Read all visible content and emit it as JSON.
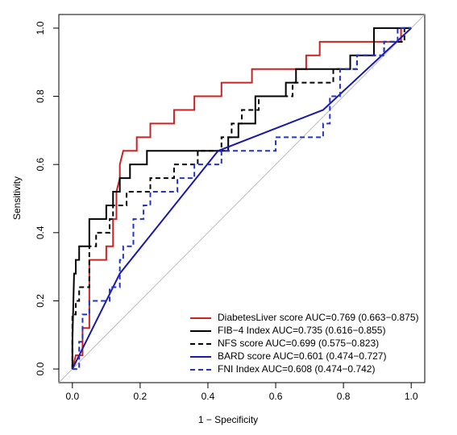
{
  "chart_data": {
    "type": "line",
    "xlabel": "1 − Specificity",
    "ylabel": "Sensitivity",
    "xlim": [
      -0.04,
      1.04
    ],
    "ylim": [
      -0.04,
      1.04
    ],
    "xticks": [
      {
        "value": 0,
        "label": "0.0"
      },
      0.2,
      0.4,
      0.6,
      0.8,
      {
        "value": 1,
        "label": "1.0"
      }
    ],
    "yticks": [
      {
        "value": 0,
        "label": "0.0"
      },
      0.2,
      0.4,
      0.6,
      0.8,
      {
        "value": 1,
        "label": "1.0"
      }
    ],
    "legend": "bottom-right",
    "series": [
      {
        "name": "DiabetesLiver score AUC=0.769 (0.663−0.875)",
        "color": "#cc2222",
        "dash": false,
        "x": [
          0,
          0.01,
          0.03,
          0.03,
          0.05,
          0.05,
          0.1,
          0.1,
          0.12,
          0.12,
          0.13,
          0.13,
          0.14,
          0.14,
          0.15,
          0.19,
          0.19,
          0.23,
          0.23,
          0.3,
          0.3,
          0.36,
          0.36,
          0.44,
          0.44,
          0.53,
          0.53,
          0.69,
          0.69,
          0.73,
          0.73,
          0.97,
          0.97,
          1
        ],
        "values": [
          0,
          0.04,
          0.04,
          0.12,
          0.12,
          0.32,
          0.32,
          0.36,
          0.36,
          0.44,
          0.44,
          0.52,
          0.56,
          0.6,
          0.64,
          0.64,
          0.68,
          0.68,
          0.72,
          0.72,
          0.76,
          0.76,
          0.8,
          0.8,
          0.84,
          0.84,
          0.88,
          0.88,
          0.92,
          0.92,
          0.96,
          0.96,
          1,
          1
        ]
      },
      {
        "name": "FIB−4 Index AUC=0.735 (0.616−0.855)",
        "color": "#000000",
        "dash": false,
        "x": [
          0,
          0,
          0.005,
          0.01,
          0.01,
          0.02,
          0.02,
          0.05,
          0.05,
          0.1,
          0.1,
          0.12,
          0.12,
          0.14,
          0.14,
          0.17,
          0.17,
          0.22,
          0.22,
          0.46,
          0.46,
          0.49,
          0.49,
          0.54,
          0.54,
          0.63,
          0.63,
          0.66,
          0.66,
          0.82,
          0.82,
          0.89,
          0.89,
          1
        ],
        "values": [
          0,
          0.08,
          0.28,
          0.28,
          0.32,
          0.32,
          0.36,
          0.36,
          0.44,
          0.44,
          0.48,
          0.48,
          0.52,
          0.52,
          0.56,
          0.56,
          0.6,
          0.6,
          0.64,
          0.64,
          0.68,
          0.68,
          0.72,
          0.72,
          0.8,
          0.8,
          0.84,
          0.84,
          0.88,
          0.88,
          0.92,
          0.92,
          1,
          1
        ]
      },
      {
        "name": "NFS score AUC=0.699 (0.575−0.823)",
        "color": "#000000",
        "dash": true,
        "x": [
          0,
          0,
          0.01,
          0.01,
          0.02,
          0.02,
          0.05,
          0.05,
          0.07,
          0.07,
          0.11,
          0.11,
          0.12,
          0.12,
          0.16,
          0.16,
          0.23,
          0.23,
          0.3,
          0.3,
          0.37,
          0.37,
          0.44,
          0.44,
          0.47,
          0.47,
          0.5,
          0.5,
          0.55,
          0.55,
          0.65,
          0.65,
          0.77,
          0.77,
          0.84,
          0.84,
          0.92,
          0.92,
          0.98,
          0.98,
          1
        ],
        "values": [
          0,
          0.16,
          0.16,
          0.2,
          0.2,
          0.24,
          0.24,
          0.36,
          0.36,
          0.4,
          0.4,
          0.44,
          0.44,
          0.48,
          0.48,
          0.52,
          0.52,
          0.56,
          0.56,
          0.6,
          0.6,
          0.64,
          0.64,
          0.68,
          0.68,
          0.72,
          0.72,
          0.76,
          0.76,
          0.8,
          0.8,
          0.84,
          0.84,
          0.88,
          0.88,
          0.92,
          0.92,
          0.96,
          0.96,
          1,
          1
        ]
      },
      {
        "name": "BARD score AUC=0.601 (0.474−0.727)",
        "color": "#1a1aaa",
        "dash": false,
        "x": [
          0,
          0.14,
          0.43,
          0.74,
          1
        ],
        "values": [
          0,
          0.28,
          0.64,
          0.76,
          1
        ]
      },
      {
        "name": "FNI Index AUC=0.608 (0.474−0.742)",
        "color": "#2233cc",
        "dash": true,
        "x": [
          0,
          0.02,
          0.02,
          0.03,
          0.03,
          0.05,
          0.05,
          0.11,
          0.11,
          0.14,
          0.14,
          0.15,
          0.15,
          0.18,
          0.18,
          0.21,
          0.21,
          0.23,
          0.23,
          0.31,
          0.31,
          0.36,
          0.36,
          0.44,
          0.44,
          0.6,
          0.6,
          0.74,
          0.74,
          0.76,
          0.76,
          0.79,
          0.79,
          0.84,
          0.84,
          0.92,
          0.92,
          0.96,
          0.96,
          1
        ],
        "values": [
          0,
          0,
          0.08,
          0.08,
          0.16,
          0.16,
          0.2,
          0.2,
          0.24,
          0.24,
          0.32,
          0.32,
          0.36,
          0.36,
          0.44,
          0.44,
          0.48,
          0.48,
          0.52,
          0.52,
          0.56,
          0.56,
          0.6,
          0.6,
          0.64,
          0.64,
          0.68,
          0.68,
          0.72,
          0.72,
          0.8,
          0.8,
          0.88,
          0.88,
          0.92,
          0.92,
          0.96,
          0.96,
          1,
          1
        ]
      }
    ]
  }
}
